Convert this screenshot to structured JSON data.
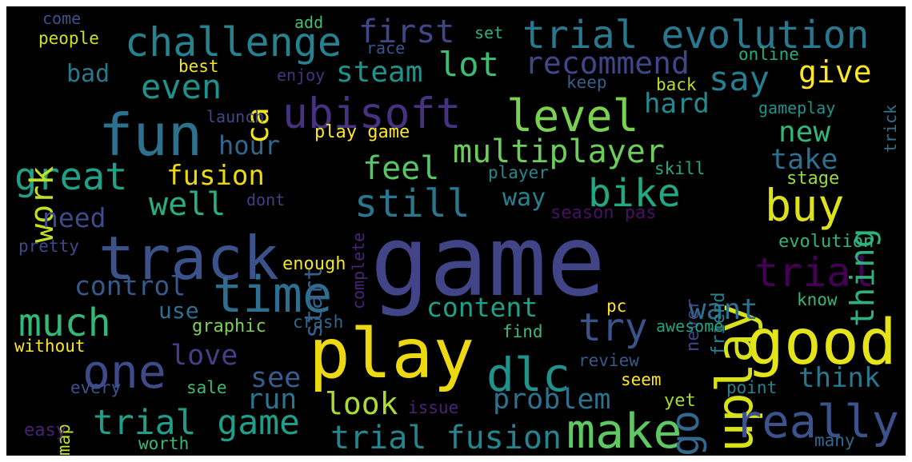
{
  "background": "#000000",
  "words": [
    {
      "text": "game",
      "color": "#414487"
    },
    {
      "text": "play",
      "color": "#ecd911"
    },
    {
      "text": "track",
      "color": "#3b528b"
    },
    {
      "text": "good",
      "color": "#e5e419"
    },
    {
      "text": "fun",
      "color": "#2c728e"
    },
    {
      "text": "uplay",
      "color": "#d8e219"
    },
    {
      "text": "time",
      "color": "#2e6e8e"
    },
    {
      "text": "make",
      "color": "#5ec962"
    },
    {
      "text": "really",
      "color": "#3b528b"
    },
    {
      "text": "dlc",
      "color": "#21918c"
    },
    {
      "text": "one",
      "color": "#3e4a89"
    },
    {
      "text": "level",
      "color": "#7ad151"
    },
    {
      "text": "ubisoft",
      "color": "#46327e"
    },
    {
      "text": "challenge",
      "color": "#26828e"
    },
    {
      "text": "trial evolution",
      "color": "#2a788e"
    },
    {
      "text": "still",
      "color": "#2a768e"
    },
    {
      "text": "go",
      "color": "#31688e"
    },
    {
      "text": "bike",
      "color": "#22a884"
    },
    {
      "text": "much",
      "color": "#35b779"
    },
    {
      "text": "trial",
      "color": "#440154"
    },
    {
      "text": "great",
      "color": "#1fa187"
    },
    {
      "text": "trial game",
      "color": "#1f9e89"
    },
    {
      "text": "try",
      "color": "#3b528b"
    },
    {
      "text": "buy",
      "color": "#dde318"
    },
    {
      "text": "even",
      "color": "#20928c"
    },
    {
      "text": "multiplayer",
      "color": "#6ccd5a"
    },
    {
      "text": "trial fusion",
      "color": "#25858e"
    },
    {
      "text": "thing",
      "color": "#2db27d"
    },
    {
      "text": "well",
      "color": "#29af7f"
    },
    {
      "text": "lot",
      "color": "#3dbc74"
    },
    {
      "text": "feel",
      "color": "#56c667"
    },
    {
      "text": "work",
      "color": "#c2df23"
    },
    {
      "text": "say",
      "color": "#287d8e"
    },
    {
      "text": "problem",
      "color": "#2c728e"
    },
    {
      "text": "first",
      "color": "#3f4788"
    },
    {
      "text": "control",
      "color": "#38598c"
    },
    {
      "text": "content",
      "color": "#1fa088"
    },
    {
      "text": "see",
      "color": "#365d8d"
    },
    {
      "text": "run",
      "color": "#2b748e"
    },
    {
      "text": "look",
      "color": "#aadc32"
    },
    {
      "text": "love",
      "color": "#424086"
    },
    {
      "text": "want",
      "color": "#2d708e"
    },
    {
      "text": "think",
      "color": "#2a778e"
    },
    {
      "text": "fusion",
      "color": "#ecd911"
    },
    {
      "text": "take",
      "color": "#2d718e"
    },
    {
      "text": "recommend",
      "color": "#404688"
    },
    {
      "text": "steam",
      "color": "#20928c"
    },
    {
      "text": "new",
      "color": "#33b67a"
    },
    {
      "text": "start",
      "color": "#34608d"
    },
    {
      "text": "hard",
      "color": "#23898e"
    },
    {
      "text": "hour",
      "color": "#31678e"
    },
    {
      "text": "need",
      "color": "#3e4a89"
    },
    {
      "text": "ca",
      "color": "#f1e51d"
    },
    {
      "text": "give",
      "color": "#fde725"
    },
    {
      "text": "way",
      "color": "#26828e"
    },
    {
      "text": "use",
      "color": "#2e6e8e"
    },
    {
      "text": "bad",
      "color": "#29798e"
    },
    {
      "text": "people",
      "color": "#d0e11c"
    },
    {
      "text": "best",
      "color": "#f3e61e"
    },
    {
      "text": "come",
      "color": "#3b528b"
    },
    {
      "text": "add",
      "color": "#44bf70"
    },
    {
      "text": "race",
      "color": "#39568c"
    },
    {
      "text": "set",
      "color": "#2ab07f"
    },
    {
      "text": "enjoy",
      "color": "#46337e"
    },
    {
      "text": "keep",
      "color": "#355f8d"
    },
    {
      "text": "back",
      "color": "#b5de2b"
    },
    {
      "text": "online",
      "color": "#27ad81"
    },
    {
      "text": "trick",
      "color": "#2c728e"
    },
    {
      "text": "gameplay",
      "color": "#21918c"
    },
    {
      "text": "launch",
      "color": "#3e4989"
    },
    {
      "text": "play game",
      "color": "#fde725"
    },
    {
      "text": "skill",
      "color": "#22a884"
    },
    {
      "text": "player",
      "color": "#23898e"
    },
    {
      "text": "stage",
      "color": "#9bd93c"
    },
    {
      "text": "season pas",
      "color": "#471063"
    },
    {
      "text": "dont",
      "color": "#433e85"
    },
    {
      "text": "complete",
      "color": "#482576"
    },
    {
      "text": "pretty",
      "color": "#3e4989"
    },
    {
      "text": "enough",
      "color": "#f1e51d"
    },
    {
      "text": "friend",
      "color": "#26828e"
    },
    {
      "text": "never",
      "color": "#414487"
    },
    {
      "text": "evolution",
      "color": "#2fb47c"
    },
    {
      "text": "know",
      "color": "#35b779"
    },
    {
      "text": "pc",
      "color": "#fde725"
    },
    {
      "text": "graphic",
      "color": "#7ad151"
    },
    {
      "text": "crash",
      "color": "#31688e"
    },
    {
      "text": "awesome",
      "color": "#20a486"
    },
    {
      "text": "find",
      "color": "#3aba76"
    },
    {
      "text": "without",
      "color": "#fde725"
    },
    {
      "text": "review",
      "color": "#38598c"
    },
    {
      "text": "seem",
      "color": "#fde725"
    },
    {
      "text": "sale",
      "color": "#3dbc74"
    },
    {
      "text": "every",
      "color": "#3b528b"
    },
    {
      "text": "yet",
      "color": "#a5db36"
    },
    {
      "text": "point",
      "color": "#26828e"
    },
    {
      "text": "map",
      "color": "#bddf26"
    },
    {
      "text": "issue",
      "color": "#482475"
    },
    {
      "text": "easy",
      "color": "#482173"
    },
    {
      "text": "worth",
      "color": "#3aba76"
    },
    {
      "text": "many",
      "color": "#306a8e"
    }
  ]
}
